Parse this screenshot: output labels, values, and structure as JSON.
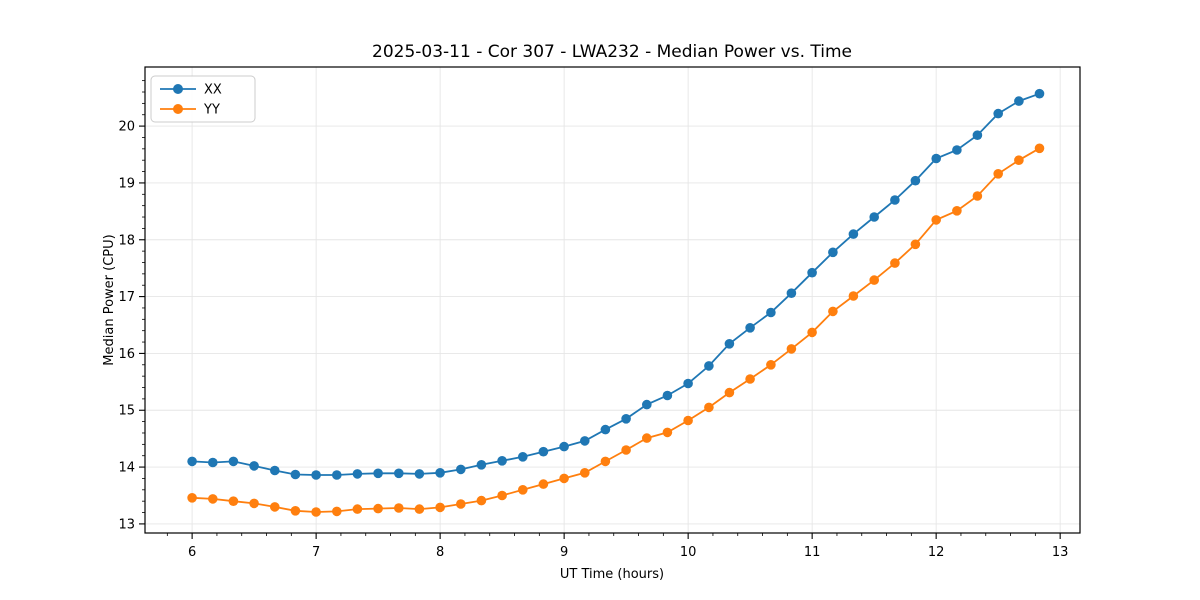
{
  "chart_data": {
    "type": "line",
    "title": "2025-03-11 - Cor 307 - LWA232 - Median Power vs. Time",
    "xlabel": "UT Time (hours)",
    "ylabel": "Median Power (CPU)",
    "x": [
      6.0,
      6.167,
      6.333,
      6.5,
      6.667,
      6.833,
      7.0,
      7.167,
      7.333,
      7.5,
      7.667,
      7.833,
      8.0,
      8.167,
      8.333,
      8.5,
      8.667,
      8.833,
      9.0,
      9.167,
      9.333,
      9.5,
      9.667,
      9.833,
      10.0,
      10.167,
      10.333,
      10.5,
      10.667,
      10.833,
      11.0,
      11.167,
      11.333,
      11.5,
      11.667,
      11.833,
      12.0,
      12.167,
      12.333,
      12.5,
      12.667,
      12.833
    ],
    "series": [
      {
        "name": "XX",
        "color": "#1f77b4",
        "values": [
          14.1,
          14.08,
          14.1,
          14.02,
          13.94,
          13.87,
          13.86,
          13.86,
          13.88,
          13.89,
          13.89,
          13.88,
          13.9,
          13.96,
          14.04,
          14.11,
          14.18,
          14.27,
          14.36,
          14.46,
          14.66,
          14.85,
          15.1,
          15.26,
          15.47,
          15.78,
          16.17,
          16.45,
          16.72,
          17.06,
          17.42,
          17.78,
          18.1,
          18.4,
          18.7,
          19.04,
          19.43,
          19.58,
          19.84,
          20.22,
          20.44,
          20.57
        ]
      },
      {
        "name": "YY",
        "color": "#ff7f0e",
        "values": [
          13.46,
          13.44,
          13.4,
          13.36,
          13.3,
          13.23,
          13.21,
          13.22,
          13.26,
          13.27,
          13.28,
          13.26,
          13.29,
          13.35,
          13.41,
          13.5,
          13.6,
          13.7,
          13.8,
          13.9,
          14.1,
          14.3,
          14.51,
          14.61,
          14.82,
          15.05,
          15.31,
          15.55,
          15.8,
          16.08,
          16.37,
          16.74,
          17.01,
          17.29,
          17.59,
          17.92,
          18.35,
          18.51,
          18.77,
          19.16,
          19.4,
          19.61
        ]
      }
    ],
    "xlim": [
      5.62,
      13.16
    ],
    "ylim": [
      12.84,
      21.04
    ],
    "xticks": [
      6,
      7,
      8,
      9,
      10,
      11,
      12,
      13
    ],
    "yticks": [
      13,
      14,
      15,
      16,
      17,
      18,
      19,
      20
    ],
    "minor_tick_step_x": 0.2,
    "minor_tick_step_y": 0.2,
    "grid": true,
    "grid_color": "#e6e6e6",
    "legend_position": "upper left",
    "legend_entries": [
      "XX",
      "YY"
    ],
    "marker": "circle",
    "spine_color": "#000000",
    "background_color": "#ffffff"
  }
}
